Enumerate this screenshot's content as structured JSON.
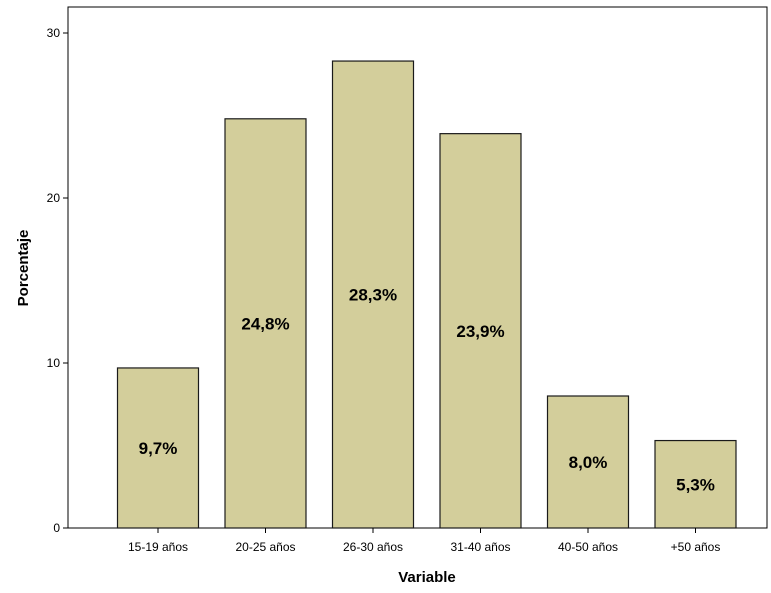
{
  "chart_data": {
    "type": "bar",
    "categories": [
      "15-19 años",
      "20-25 años",
      "26-30 años",
      "31-40 años",
      "40-50 años",
      "+50 años"
    ],
    "values": [
      9.7,
      24.8,
      28.3,
      23.9,
      8.0,
      5.3
    ],
    "data_labels": [
      "9,7%",
      "24,8%",
      "28,3%",
      "23,9%",
      "8,0%",
      "5,3%"
    ],
    "xlabel": "Variable",
    "ylabel": "Porcentaje",
    "ylim": [
      0,
      32
    ],
    "yticks": [
      0,
      10,
      20,
      30
    ],
    "ytick_labels": [
      "0",
      "10",
      "20",
      "30"
    ],
    "grid": false,
    "bar_color": "#d3ce9b",
    "bar_stroke": "#1a1a1a"
  }
}
